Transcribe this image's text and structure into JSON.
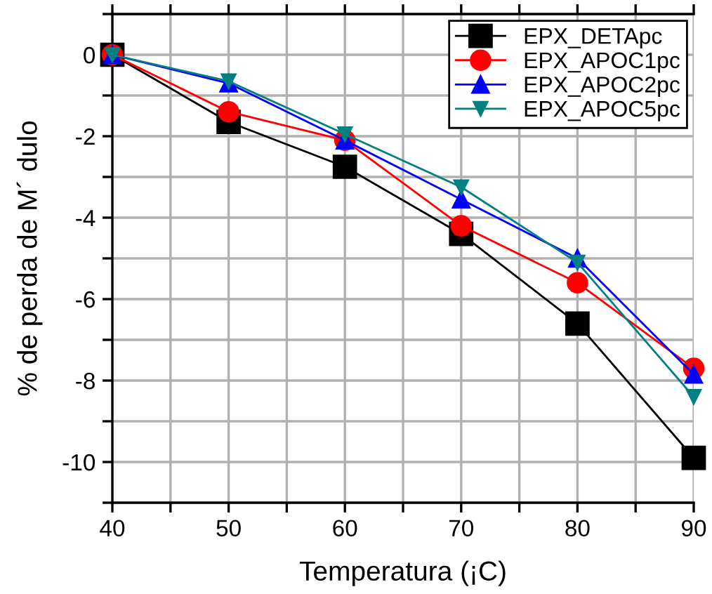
{
  "chart_data": {
    "type": "line",
    "xlabel": "Temperatura (¡C)",
    "ylabel": "% de perda de M´ dulo",
    "x": [
      40,
      50,
      60,
      70,
      80,
      90
    ],
    "series": [
      {
        "name": "EPX_DETApc",
        "color": "#000000",
        "marker": "square",
        "values": [
          0,
          -1.65,
          -2.75,
          -4.4,
          -6.6,
          -9.9
        ]
      },
      {
        "name": "EPX_APOC1pc",
        "color": "#ff0000",
        "marker": "circle",
        "values": [
          0,
          -1.4,
          -2.1,
          -4.2,
          -5.6,
          -7.7
        ]
      },
      {
        "name": "EPX_APOC2pc",
        "color": "#0000ff",
        "marker": "triangle",
        "values": [
          0,
          -0.7,
          -2.1,
          -3.55,
          -5.0,
          -7.85
        ]
      },
      {
        "name": "EPX_APOC5pc",
        "color": "#008080",
        "marker": "triangle_down",
        "values": [
          0,
          -0.65,
          -1.95,
          -3.25,
          -5.1,
          -8.4
        ]
      }
    ],
    "xlim": [
      40,
      90
    ],
    "ylim": [
      -11,
      1
    ],
    "xticks": [
      40,
      {
        "value": 45,
        "label": null
      },
      50,
      {
        "value": 55,
        "label": null
      },
      60,
      {
        "value": 65,
        "label": null
      },
      70,
      {
        "value": 75,
        "label": null
      },
      80,
      {
        "value": 85,
        "label": null
      },
      90
    ],
    "yticks": [
      {
        "value": -11,
        "label": null
      },
      -10,
      {
        "value": -9,
        "label": null
      },
      -8,
      {
        "value": -7,
        "label": null
      },
      -6,
      {
        "value": -5,
        "label": null
      },
      -4,
      {
        "value": -3,
        "label": null
      },
      -2,
      {
        "value": -1,
        "label": null
      },
      0,
      {
        "value": 1,
        "label": null
      }
    ],
    "grid": true,
    "legend": "top right",
    "line_style": "solid"
  }
}
